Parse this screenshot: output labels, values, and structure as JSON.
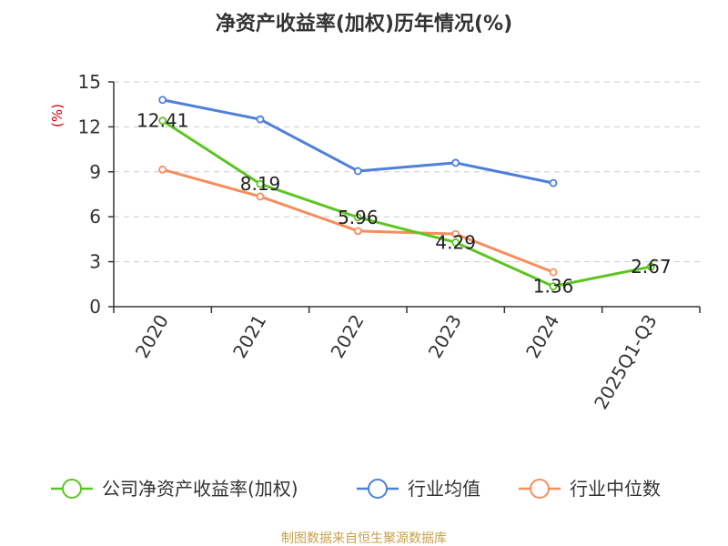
{
  "chart_data": {
    "type": "line",
    "title": "净资产收益率(加权)历年情况(%)",
    "ylabel": "(%)",
    "ylim": [
      0,
      15
    ],
    "yticks": [
      0,
      3,
      6,
      9,
      12,
      15
    ],
    "grid": true,
    "categories": [
      "2020",
      "2021",
      "2022",
      "2023",
      "2024",
      "2025Q1-Q3"
    ],
    "series": [
      {
        "name": "公司净资产收益率(加权)",
        "color": "#5cc523",
        "values": [
          12.41,
          8.19,
          5.96,
          4.29,
          1.36,
          2.67
        ],
        "labels": [
          "12.41",
          "8.19",
          "5.96",
          "4.29",
          "1.36",
          "2.67"
        ]
      },
      {
        "name": "行业均值",
        "color": "#4e7fdb",
        "values": [
          13.8,
          12.5,
          9.05,
          9.6,
          8.25,
          null
        ]
      },
      {
        "name": "行业中位数",
        "color": "#f78d5c",
        "values": [
          9.15,
          7.35,
          5.05,
          4.85,
          2.3,
          null
        ]
      }
    ],
    "legend_position": "bottom"
  },
  "colors": {
    "axis": "#333333",
    "grid": "#cccccc",
    "ylabel": "#cc0000",
    "source": "#c8a04a"
  },
  "source_note": "制图数据来自恒生聚源数据库"
}
